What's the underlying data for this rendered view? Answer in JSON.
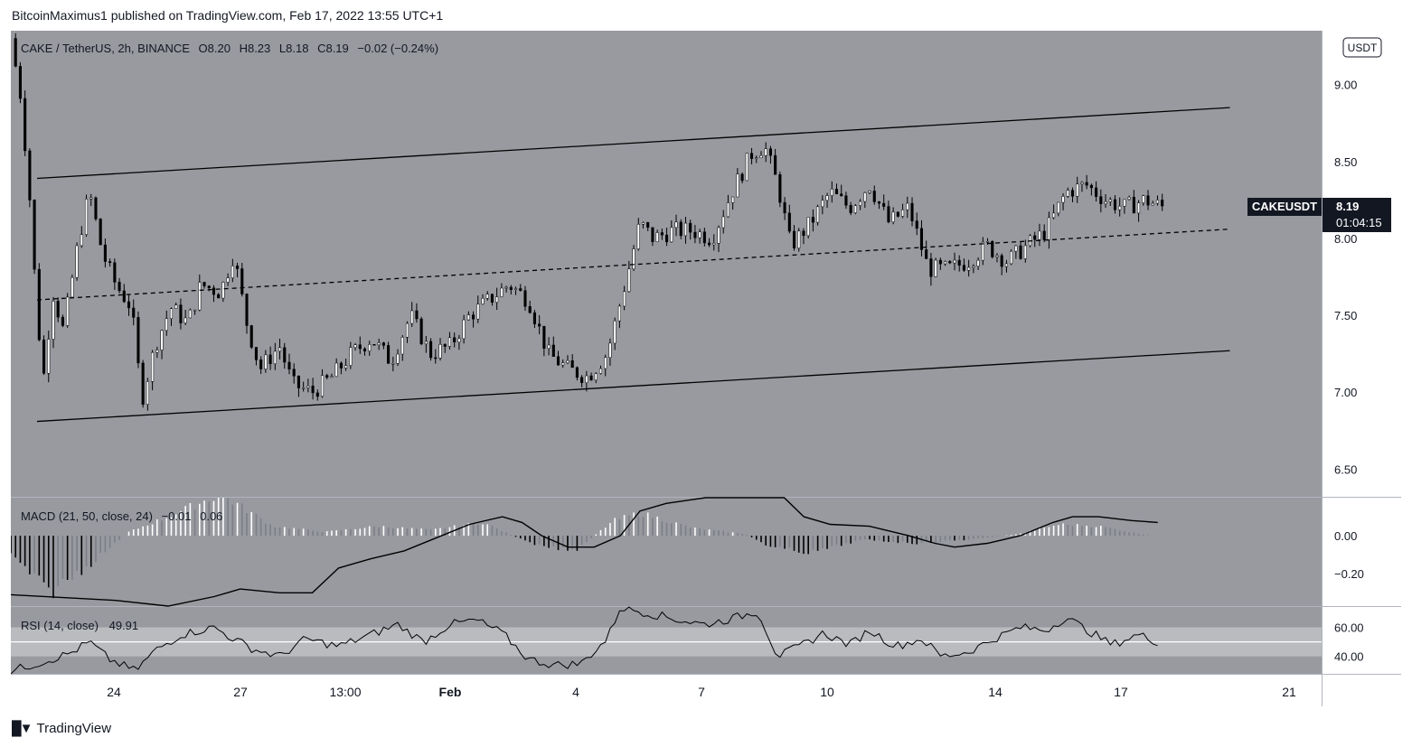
{
  "header": {
    "publisher_line": "BitcoinMaximus1 published on TradingView.com, Feb 17, 2022 13:55 UTC+1"
  },
  "footer": {
    "brand": "TradingView",
    "logo_icon": "tradingview-logo-icon"
  },
  "colors": {
    "background": "#989aa0",
    "candle_up": "#ffffff",
    "candle_down": "#000000",
    "line": "#000000",
    "rsi_band": "#b9bbbf",
    "label_bg": "#131722"
  },
  "chart_data": [
    {
      "type": "candlestick",
      "title": "CAKE / TetherUS, 2h, BINANCE",
      "ohlc_legend": {
        "o_label": "O",
        "o": "8.20",
        "h_label": "H",
        "h": "8.23",
        "l_label": "L",
        "l": "8.18",
        "c_label": "C",
        "c": "8.19",
        "change": "−0.02 (−0.24%)"
      },
      "currency_badge": "USDT",
      "symbol_label": "CAKEUSDT",
      "last_price": "8.19",
      "countdown": "01:04:15",
      "y_ticks": [
        "9.00",
        "8.50",
        "8.00",
        "7.50",
        "7.00",
        "6.50"
      ],
      "ylim": [
        6.32,
        9.35
      ],
      "x_ticks": [
        "24",
        "27",
        "13:00",
        "Feb",
        "4",
        "7",
        "10",
        "14",
        "17",
        "21"
      ],
      "price_path": [
        [
          0.0,
          9.3
        ],
        [
          0.8,
          8.9
        ],
        [
          1.5,
          8.2
        ],
        [
          2.0,
          7.5
        ],
        [
          2.5,
          7.1
        ],
        [
          3.2,
          7.65
        ],
        [
          4.0,
          7.4
        ],
        [
          5.2,
          8.0
        ],
        [
          6.0,
          8.3
        ],
        [
          7.0,
          7.9
        ],
        [
          8.0,
          7.7
        ],
        [
          9.2,
          7.55
        ],
        [
          10.0,
          6.95
        ],
        [
          11.0,
          7.3
        ],
        [
          12.2,
          7.55
        ],
        [
          13.5,
          7.45
        ],
        [
          14.5,
          7.7
        ],
        [
          16.0,
          7.65
        ],
        [
          17.0,
          7.9
        ],
        [
          18.0,
          7.45
        ],
        [
          19.0,
          7.15
        ],
        [
          20.5,
          7.3
        ],
        [
          21.5,
          7.05
        ],
        [
          23.0,
          7.0
        ],
        [
          24.5,
          7.1
        ],
        [
          26.0,
          7.25
        ],
        [
          27.5,
          7.35
        ],
        [
          29.0,
          7.2
        ],
        [
          30.5,
          7.5
        ],
        [
          32.0,
          7.25
        ],
        [
          33.5,
          7.3
        ],
        [
          35.0,
          7.5
        ],
        [
          36.5,
          7.6
        ],
        [
          38.0,
          7.7
        ],
        [
          39.5,
          7.6
        ],
        [
          41.0,
          7.25
        ],
        [
          42.5,
          7.15
        ],
        [
          44.0,
          7.1
        ],
        [
          45.5,
          7.25
        ],
        [
          47.0,
          7.75
        ],
        [
          48.0,
          8.1
        ],
        [
          49.0,
          8.0
        ],
        [
          50.5,
          8.05
        ],
        [
          52.0,
          8.05
        ],
        [
          53.5,
          8.0
        ],
        [
          55.0,
          8.3
        ],
        [
          56.5,
          8.55
        ],
        [
          57.5,
          8.6
        ],
        [
          58.5,
          8.35
        ],
        [
          59.5,
          7.95
        ],
        [
          61.0,
          8.1
        ],
        [
          62.5,
          8.3
        ],
        [
          64.0,
          8.2
        ],
        [
          65.5,
          8.35
        ],
        [
          67.0,
          8.1
        ],
        [
          68.5,
          8.2
        ],
        [
          70.0,
          7.8
        ],
        [
          71.5,
          7.8
        ],
        [
          73.0,
          7.85
        ],
        [
          74.5,
          7.95
        ],
        [
          76.0,
          7.85
        ],
        [
          77.5,
          7.95
        ],
        [
          79.0,
          8.05
        ],
        [
          80.5,
          8.3
        ],
        [
          82.0,
          8.35
        ],
        [
          83.5,
          8.25
        ],
        [
          85.0,
          8.2
        ],
        [
          86.5,
          8.25
        ],
        [
          88.0,
          8.2
        ]
      ],
      "channel": {
        "upper": [
          [
            2.0,
            8.39
          ],
          [
            93.0,
            8.85
          ]
        ],
        "lower": [
          [
            2.0,
            6.81
          ],
          [
            93.0,
            7.27
          ]
        ],
        "middle": [
          [
            2.0,
            7.6
          ],
          [
            93.0,
            8.06
          ]
        ]
      },
      "xlim": [
        0.0,
        100.0
      ],
      "grid": false
    },
    {
      "type": "line+histogram",
      "title": "MACD (21, 50, close, 24)",
      "values_label": [
        "−0.01",
        "0.06"
      ],
      "y_ticks": [
        "0.00",
        "−0.20"
      ],
      "ylim": [
        -0.37,
        0.2
      ],
      "macd_line": [
        [
          0.0,
          -0.31
        ],
        [
          8.0,
          -0.34
        ],
        [
          12.0,
          -0.39
        ],
        [
          15.5,
          -0.32
        ],
        [
          17.5,
          -0.28
        ],
        [
          20.5,
          -0.3
        ],
        [
          23.0,
          -0.3
        ],
        [
          25.0,
          -0.17
        ],
        [
          27.5,
          -0.12
        ],
        [
          30.0,
          -0.08
        ],
        [
          32.5,
          -0.01
        ],
        [
          35.0,
          0.06
        ],
        [
          37.5,
          0.1
        ],
        [
          39.0,
          0.07
        ],
        [
          40.5,
          0.0
        ],
        [
          42.5,
          -0.06
        ],
        [
          44.5,
          -0.06
        ],
        [
          46.5,
          0.0
        ],
        [
          48.0,
          0.13
        ],
        [
          50.0,
          0.17
        ],
        [
          53.0,
          0.2
        ],
        [
          56.5,
          0.22
        ],
        [
          59.0,
          0.2
        ],
        [
          60.5,
          0.1
        ],
        [
          62.5,
          0.06
        ],
        [
          65.5,
          0.05
        ],
        [
          68.5,
          0.0
        ],
        [
          70.5,
          -0.04
        ],
        [
          72.0,
          -0.06
        ],
        [
          74.5,
          -0.04
        ],
        [
          77.0,
          0.0
        ],
        [
          79.5,
          0.07
        ],
        [
          81.0,
          0.1
        ],
        [
          83.0,
          0.1
        ],
        [
          85.5,
          0.08
        ],
        [
          87.5,
          0.07
        ]
      ],
      "histogram": [
        [
          0.0,
          -0.1
        ],
        [
          3.0,
          -0.3
        ],
        [
          6.0,
          -0.15
        ],
        [
          9.0,
          0.02
        ],
        [
          12.0,
          0.1
        ],
        [
          16.0,
          0.22
        ],
        [
          20.0,
          0.05
        ],
        [
          24.0,
          0.02
        ],
        [
          28.0,
          0.05
        ],
        [
          32.0,
          0.03
        ],
        [
          36.0,
          0.07
        ],
        [
          40.0,
          -0.05
        ],
        [
          43.0,
          -0.08
        ],
        [
          46.0,
          0.08
        ],
        [
          48.0,
          0.12
        ],
        [
          52.0,
          0.04
        ],
        [
          56.0,
          0.01
        ],
        [
          58.0,
          -0.06
        ],
        [
          61.0,
          -0.09
        ],
        [
          65.0,
          -0.02
        ],
        [
          69.0,
          -0.04
        ],
        [
          73.0,
          -0.02
        ],
        [
          77.0,
          0.01
        ],
        [
          80.0,
          0.06
        ],
        [
          83.0,
          0.05
        ],
        [
          87.0,
          0.0
        ]
      ]
    },
    {
      "type": "line",
      "title": "RSI (14, close)",
      "value": "49.91",
      "y_ticks": [
        "60.00",
        "40.00"
      ],
      "ylim": [
        28,
        74
      ],
      "band": [
        40,
        60
      ],
      "midline": 50,
      "rsi_line": [
        [
          0.0,
          30
        ],
        [
          2.0,
          35
        ],
        [
          4.5,
          42
        ],
        [
          6.0,
          50
        ],
        [
          7.5,
          38
        ],
        [
          9.5,
          30
        ],
        [
          11.0,
          44
        ],
        [
          13.0,
          55
        ],
        [
          15.5,
          60
        ],
        [
          17.0,
          52
        ],
        [
          18.5,
          45
        ],
        [
          20.5,
          40
        ],
        [
          22.5,
          52
        ],
        [
          25.0,
          47
        ],
        [
          27.5,
          55
        ],
        [
          29.5,
          62
        ],
        [
          31.5,
          50
        ],
        [
          33.5,
          62
        ],
        [
          35.5,
          65
        ],
        [
          37.5,
          56
        ],
        [
          39.5,
          38
        ],
        [
          41.5,
          34
        ],
        [
          43.5,
          35
        ],
        [
          45.5,
          52
        ],
        [
          46.5,
          74
        ],
        [
          48.5,
          70
        ],
        [
          51.0,
          65
        ],
        [
          53.0,
          62
        ],
        [
          55.0,
          66
        ],
        [
          57.0,
          71
        ],
        [
          58.5,
          40
        ],
        [
          60.0,
          46
        ],
        [
          62.0,
          56
        ],
        [
          64.0,
          48
        ],
        [
          65.5,
          58
        ],
        [
          67.5,
          47
        ],
        [
          69.5,
          52
        ],
        [
          71.0,
          40
        ],
        [
          73.0,
          43
        ],
        [
          75.0,
          52
        ],
        [
          77.0,
          60
        ],
        [
          79.0,
          58
        ],
        [
          80.5,
          67
        ],
        [
          82.5,
          56
        ],
        [
          84.0,
          48
        ],
        [
          86.0,
          55
        ],
        [
          87.5,
          50
        ]
      ]
    }
  ]
}
